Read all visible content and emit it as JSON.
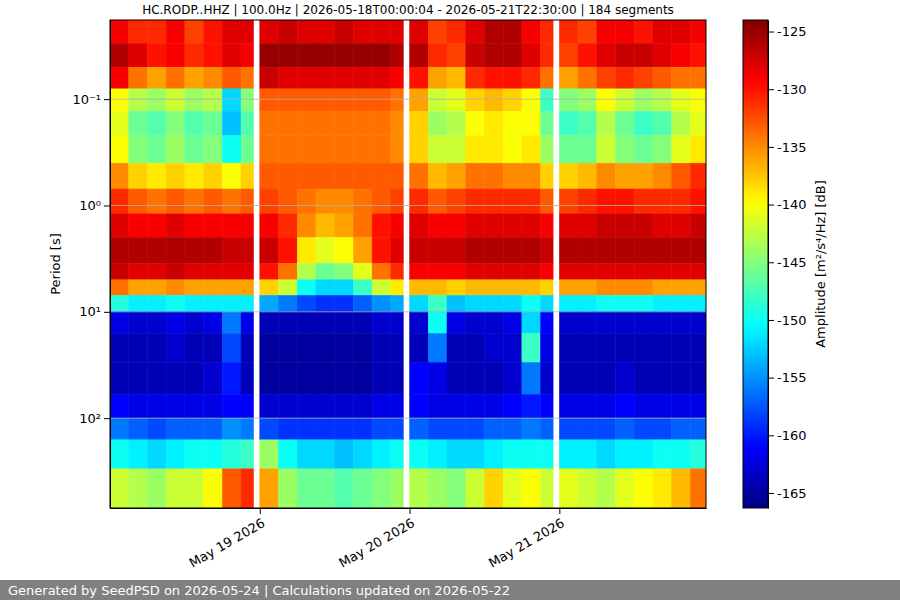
{
  "chart_data": {
    "type": "heatmap",
    "title": "HC.RODP..HHZ | 100.0Hz | 2026-05-18T00:00:04 - 2026-05-21T22:30:00 | 184 segments",
    "ylabel": "Period [s]",
    "footer": "Generated by SeedPSD on 2026-05-24 | Calculations updated on 2026-05-22",
    "log": "y",
    "grid": "y",
    "xlim": [
      "2026-05-18T00:00",
      "2026-05-21T23:30"
    ],
    "xticks": [
      {
        "value": "2026-05-19T00:00",
        "label": "May 19 2026"
      },
      {
        "value": "2026-05-20T00:00",
        "label": "May 20 2026"
      },
      {
        "value": "2026-05-21T00:00",
        "label": "May 21 2026"
      }
    ],
    "ylim": [
      0.018,
      700
    ],
    "yticks": [
      {
        "value": 0.1,
        "label": "10⁻¹"
      },
      {
        "value": 1,
        "label": "10⁰"
      },
      {
        "value": 10,
        "label": "10¹"
      },
      {
        "value": 100,
        "label": "10²"
      }
    ],
    "x": [
      "2026-05-18T00:00",
      "2026-05-18T03:00",
      "2026-05-18T06:00",
      "2026-05-18T09:00",
      "2026-05-18T12:00",
      "2026-05-18T15:00",
      "2026-05-18T18:00",
      "2026-05-18T21:00",
      "2026-05-18T23:00",
      "2026-05-19T00:00",
      "2026-05-19T03:00",
      "2026-05-19T06:00",
      "2026-05-19T09:00",
      "2026-05-19T12:00",
      "2026-05-19T15:00",
      "2026-05-19T18:00",
      "2026-05-19T21:00",
      "2026-05-19T23:00",
      "2026-05-20T00:00",
      "2026-05-20T03:00",
      "2026-05-20T06:00",
      "2026-05-20T09:00",
      "2026-05-20T12:00",
      "2026-05-20T15:00",
      "2026-05-20T18:00",
      "2026-05-20T21:00",
      "2026-05-20T23:00",
      "2026-05-21T00:00",
      "2026-05-21T03:00",
      "2026-05-21T06:00",
      "2026-05-21T09:00",
      "2026-05-21T12:00",
      "2026-05-21T15:00",
      "2026-05-21T18:00",
      "2026-05-21T21:00",
      "2026-05-21T23:30"
    ],
    "y": [
      0.018,
      0.03,
      0.05,
      0.08,
      0.13,
      0.22,
      0.4,
      0.7,
      1.2,
      2,
      3.5,
      5,
      7,
      10,
      16,
      30,
      60,
      100,
      160,
      300,
      700
    ],
    "cells": [
      [
        -129,
        -131,
        -131,
        -129,
        -132,
        -130,
        -128,
        -128,
        null,
        -128,
        -127,
        -128,
        -128,
        -127,
        -128,
        -128,
        -128,
        null,
        -128,
        -132,
        -131,
        -128,
        -126,
        -126,
        -129,
        -131,
        null,
        -131,
        -132,
        -129,
        -129,
        -130,
        -128,
        -128,
        -129
      ],
      [
        -126,
        -128,
        -130,
        -129,
        -131,
        -130,
        -128,
        -129,
        null,
        -125,
        -125,
        -125,
        -125,
        -125,
        -125,
        -125,
        -126,
        null,
        -126,
        -131,
        -132,
        -127,
        -126,
        -126,
        -128,
        -131,
        null,
        -132,
        -130,
        -128,
        -127,
        -127,
        -128,
        -129,
        -130
      ],
      [
        -129,
        -134,
        -136,
        -134,
        -136,
        -135,
        -133,
        -134,
        null,
        -127,
        -128,
        -128,
        -128,
        -128,
        -128,
        -128,
        -129,
        null,
        -130,
        -136,
        -137,
        -131,
        -130,
        -130,
        -131,
        -134,
        null,
        -136,
        -134,
        -132,
        -131,
        -132,
        -133,
        -134,
        -134
      ],
      [
        -140,
        -143,
        -144,
        -142,
        -144,
        -143,
        -152,
        -145,
        null,
        -133,
        -133,
        -133,
        -133,
        -133,
        -133,
        -133,
        -134,
        null,
        -136,
        -142,
        -141,
        -138,
        -137,
        -138,
        -140,
        -148,
        null,
        -145,
        -144,
        -140,
        -142,
        -144,
        -143,
        -141,
        -140
      ],
      [
        -141,
        -146,
        -147,
        -145,
        -147,
        -146,
        -153,
        -147,
        null,
        -134,
        -134,
        -134,
        -134,
        -134,
        -134,
        -134,
        -135,
        null,
        -138,
        -144,
        -143,
        -140,
        -139,
        -140,
        -140,
        -146,
        null,
        -148,
        -147,
        -143,
        -146,
        -148,
        -147,
        -143,
        -141
      ],
      [
        -140,
        -145,
        -146,
        -144,
        -146,
        -145,
        -150,
        -146,
        null,
        -134,
        -134,
        -134,
        -134,
        -134,
        -134,
        -134,
        -135,
        null,
        -138,
        -142,
        -142,
        -139,
        -139,
        -140,
        -139,
        -144,
        null,
        -146,
        -146,
        -142,
        -145,
        -146,
        -145,
        -141,
        -139
      ],
      [
        -135,
        -138,
        -139,
        -138,
        -139,
        -138,
        -140,
        -138,
        null,
        -133,
        -133,
        -133,
        -133,
        -133,
        -133,
        -133,
        -133,
        null,
        -134,
        -137,
        -136,
        -134,
        -134,
        -135,
        -135,
        -138,
        null,
        -138,
        -137,
        -135,
        -136,
        -136,
        -135,
        -133,
        -131
      ],
      [
        -131,
        -133,
        -134,
        -133,
        -134,
        -133,
        -134,
        -133,
        null,
        -132,
        -133,
        -134,
        -135,
        -135,
        -134,
        -133,
        -132,
        null,
        -131,
        -133,
        -132,
        -131,
        -131,
        -131,
        -131,
        -133,
        null,
        -132,
        -131,
        -130,
        -130,
        -131,
        -131,
        -131,
        -130
      ],
      [
        -128,
        -129,
        -129,
        -128,
        -129,
        -129,
        -129,
        -129,
        null,
        -129,
        -131,
        -135,
        -137,
        -136,
        -134,
        -130,
        -129,
        null,
        -128,
        -129,
        -129,
        -128,
        -128,
        -128,
        -128,
        -129,
        null,
        -128,
        -128,
        -127,
        -127,
        -127,
        -128,
        -128,
        -127
      ],
      [
        -126,
        -126,
        -126,
        -126,
        -126,
        -126,
        -127,
        -127,
        null,
        -127,
        -130,
        -139,
        -141,
        -140,
        -136,
        -130,
        -128,
        null,
        -127,
        -127,
        -127,
        -126,
        -126,
        -126,
        -126,
        -127,
        null,
        -126,
        -126,
        -126,
        -126,
        -126,
        -126,
        -126,
        -126
      ],
      [
        -127,
        -128,
        -128,
        -127,
        -128,
        -128,
        -128,
        -128,
        null,
        -130,
        -134,
        -143,
        -146,
        -145,
        -141,
        -134,
        -131,
        null,
        -129,
        -129,
        -129,
        -128,
        -128,
        -128,
        -128,
        -129,
        null,
        -128,
        -128,
        -128,
        -128,
        -128,
        -128,
        -128,
        -128
      ],
      [
        -134,
        -136,
        -136,
        -135,
        -136,
        -136,
        -136,
        -136,
        null,
        -138,
        -142,
        -150,
        -152,
        -152,
        -148,
        -142,
        -139,
        null,
        -137,
        -137,
        -138,
        -137,
        -137,
        -137,
        -137,
        -138,
        null,
        -136,
        -136,
        -135,
        -135,
        -135,
        -136,
        -136,
        -136
      ],
      [
        -149,
        -151,
        -151,
        -150,
        -151,
        -151,
        -151,
        -151,
        null,
        -154,
        -156,
        -158,
        -159,
        -159,
        -157,
        -155,
        -154,
        null,
        -152,
        -148,
        -153,
        -152,
        -152,
        -152,
        -150,
        -152,
        null,
        -151,
        -151,
        -150,
        -150,
        -150,
        -151,
        -151,
        -151
      ],
      [
        -162,
        -163,
        -163,
        -162,
        -163,
        -162,
        -156,
        -162,
        null,
        -164,
        -164,
        -164,
        -164,
        -164,
        -164,
        -163,
        -163,
        null,
        -163,
        -150,
        -162,
        -163,
        -163,
        -162,
        -152,
        -161,
        null,
        -163,
        -163,
        -163,
        -163,
        -163,
        -163,
        -163,
        -163
      ],
      [
        -164,
        -164,
        -164,
        -163,
        -164,
        -164,
        -158,
        -164,
        null,
        -165,
        -165,
        -165,
        -165,
        -165,
        -165,
        -164,
        -164,
        null,
        -164,
        -156,
        -164,
        -164,
        -163,
        -163,
        -148,
        -162,
        null,
        -164,
        -164,
        -164,
        -164,
        -164,
        -164,
        -164,
        -164
      ],
      [
        -164,
        -164,
        -164,
        -164,
        -164,
        -163,
        -160,
        -164,
        null,
        -165,
        -165,
        -165,
        -165,
        -165,
        -165,
        -164,
        -164,
        null,
        -161,
        -162,
        -164,
        -164,
        -164,
        -163,
        -156,
        -163,
        null,
        -164,
        -164,
        -164,
        -163,
        -164,
        -164,
        -164,
        -164
      ],
      [
        -161,
        -162,
        -162,
        -162,
        -162,
        -162,
        -161,
        -161,
        null,
        -163,
        -163,
        -163,
        -163,
        -163,
        -163,
        -162,
        -162,
        null,
        -161,
        -162,
        -162,
        -162,
        -162,
        -161,
        -160,
        -161,
        null,
        -162,
        -162,
        -162,
        -161,
        -162,
        -162,
        -162,
        -162
      ],
      [
        -156,
        -157,
        -158,
        -157,
        -157,
        -157,
        -155,
        -156,
        null,
        -158,
        -159,
        -159,
        -159,
        -159,
        -159,
        -158,
        -158,
        null,
        -157,
        -158,
        -158,
        -158,
        -157,
        -157,
        -156,
        -157,
        null,
        -158,
        -158,
        -158,
        -157,
        -158,
        -158,
        -157,
        -157
      ],
      [
        -150,
        -151,
        -152,
        -151,
        -150,
        -150,
        -149,
        -148,
        null,
        -144,
        -150,
        -152,
        -152,
        -153,
        -152,
        -151,
        -150,
        null,
        -150,
        -151,
        -152,
        -152,
        -151,
        -150,
        -150,
        -150,
        null,
        -151,
        -151,
        -152,
        -151,
        -151,
        -150,
        -150,
        -149
      ],
      [
        -142,
        -143,
        -144,
        -142,
        -142,
        -140,
        -133,
        -131,
        null,
        -136,
        -144,
        -146,
        -146,
        -147,
        -146,
        -145,
        -144,
        null,
        -143,
        -144,
        -145,
        -142,
        -138,
        -141,
        -140,
        -142,
        null,
        -141,
        -142,
        -143,
        -141,
        -140,
        -139,
        -137,
        -134
      ]
    ],
    "colorbar": {
      "label": "Amplitude [m²/s⁴/Hz] [dB]",
      "lim": [
        -166.3,
        -124
      ],
      "ticks": [
        -165,
        -160,
        -155,
        -150,
        -145,
        -140,
        -135,
        -130,
        -125
      ]
    }
  }
}
